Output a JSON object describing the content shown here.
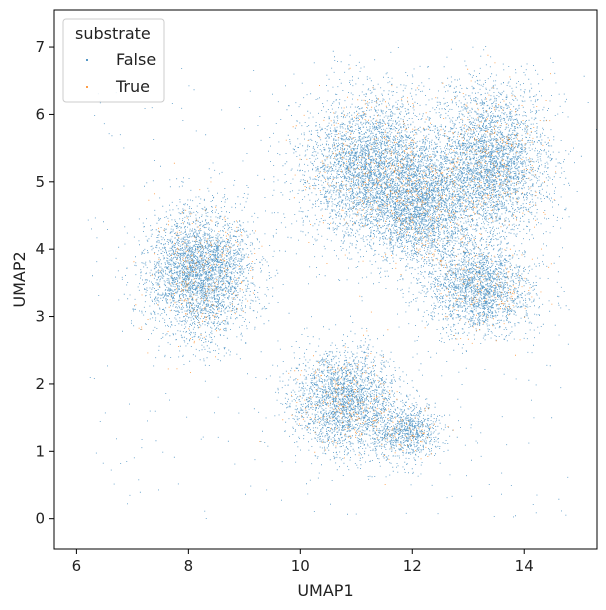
{
  "chart_data": {
    "type": "scatter",
    "xlabel": "UMAP1",
    "ylabel": "UMAP2",
    "xlim": [
      5.6,
      15.3
    ],
    "ylim": [
      -0.45,
      7.55
    ],
    "xticks": [
      6,
      8,
      10,
      12,
      14
    ],
    "yticks": [
      0,
      1,
      2,
      3,
      4,
      5,
      6,
      7
    ],
    "grid": false,
    "legend": {
      "title": "substrate",
      "placement": "top-left",
      "entries": [
        "False",
        "True"
      ]
    },
    "series_colors": {
      "False": "#1f77b4",
      "True": "#ff7f0e"
    },
    "series": [
      {
        "name": "False",
        "clusters": [
          {
            "label": "left blob",
            "center": [
              8.2,
              3.65
            ],
            "spread": [
              0.55,
              0.55
            ],
            "points": 3600
          },
          {
            "label": "lower blob",
            "center": [
              10.8,
              1.75
            ],
            "spread": [
              0.55,
              0.45
            ],
            "points": 2600
          },
          {
            "label": "lower-right lobe",
            "center": [
              11.9,
              1.3
            ],
            "spread": [
              0.35,
              0.25
            ],
            "points": 900
          },
          {
            "label": "upper-left lobe",
            "center": [
              11.3,
              5.2
            ],
            "spread": [
              0.75,
              0.65
            ],
            "points": 4200
          },
          {
            "label": "upper-center lobe",
            "center": [
              12.2,
              4.6
            ],
            "spread": [
              0.55,
              0.5
            ],
            "points": 2400
          },
          {
            "label": "upper-right lobe",
            "center": [
              13.4,
              5.3
            ],
            "spread": [
              0.6,
              0.65
            ],
            "points": 3600
          },
          {
            "label": "lower-right of upper",
            "center": [
              13.2,
              3.4
            ],
            "spread": [
              0.55,
              0.4
            ],
            "points": 2200
          }
        ]
      },
      {
        "name": "True",
        "fraction": 0.08
      }
    ]
  }
}
